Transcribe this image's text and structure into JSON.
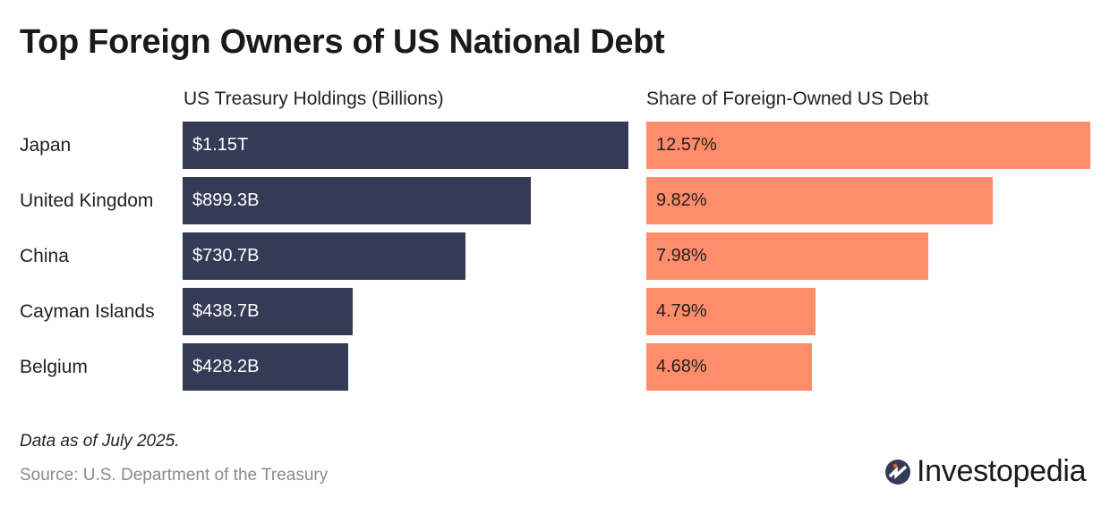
{
  "chart_data": [
    {
      "type": "bar",
      "orientation": "horizontal",
      "title": "US Treasury Holdings (Billions)",
      "categories": [
        "Japan",
        "United Kingdom",
        "China",
        "Cayman Islands",
        "Belgium"
      ],
      "values": [
        1150,
        899.3,
        730.7,
        438.7,
        428.2
      ],
      "labels": [
        "$1.15T",
        "$899.3B",
        "$730.7B",
        "$438.7B",
        "$428.2B"
      ],
      "color": "#353b57"
    },
    {
      "type": "bar",
      "orientation": "horizontal",
      "title": "Share of Foreign-Owned US Debt",
      "categories": [
        "Japan",
        "United Kingdom",
        "China",
        "Cayman Islands",
        "Belgium"
      ],
      "values": [
        12.57,
        9.82,
        7.98,
        4.79,
        4.68
      ],
      "labels": [
        "12.57%",
        "9.82%",
        "7.98%",
        "4.79%",
        "4.68%"
      ],
      "color": "#ff8c6b"
    }
  ],
  "title": "Top Foreign Owners of US National Debt",
  "note": "Data as of July 2025.",
  "source": "Source: U.S. Department of the Treasury",
  "logo": "Investopedia"
}
